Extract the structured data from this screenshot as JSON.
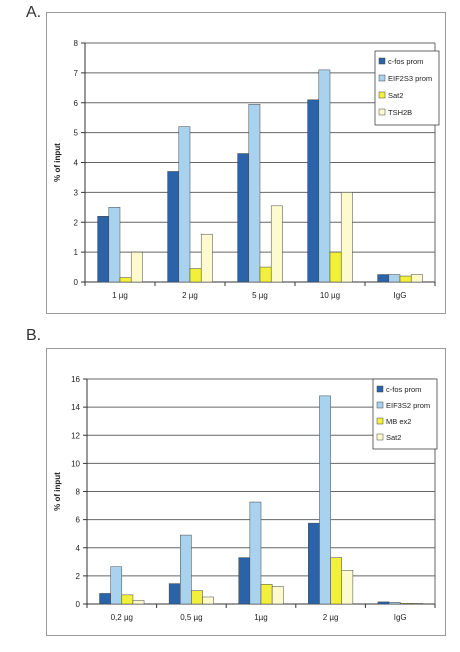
{
  "panels": [
    {
      "label": "A."
    },
    {
      "label": "B."
    }
  ],
  "chart_data": [
    {
      "type": "bar",
      "title": "",
      "xlabel": "",
      "ylabel": "% of input",
      "ylim": [
        0,
        8
      ],
      "yticks": [
        0,
        1,
        2,
        3,
        4,
        5,
        6,
        7,
        8
      ],
      "grid": true,
      "legend": "top-right",
      "categories": [
        "1 µg",
        "2 µg",
        "5 µg",
        "10 µg",
        "IgG"
      ],
      "series": [
        {
          "name": "c-fos prom",
          "color": "#2a63a8",
          "values": [
            2.2,
            3.7,
            4.3,
            6.1,
            0.25
          ]
        },
        {
          "name": "EIF2S3 prom",
          "color": "#a9d2ee",
          "values": [
            2.5,
            5.2,
            5.95,
            7.1,
            0.25
          ]
        },
        {
          "name": "Sat2",
          "color": "#f2f03a",
          "values": [
            0.15,
            0.45,
            0.5,
            1.0,
            0.2
          ]
        },
        {
          "name": "TSH2B",
          "color": "#fdfbcd",
          "values": [
            1.0,
            1.6,
            2.55,
            3.0,
            0.25
          ]
        }
      ]
    },
    {
      "type": "bar",
      "title": "",
      "xlabel": "",
      "ylabel": "% of input",
      "ylim": [
        0,
        16
      ],
      "yticks": [
        0,
        2,
        4,
        6,
        8,
        10,
        12,
        14,
        16
      ],
      "grid": true,
      "legend": "top-right",
      "categories": [
        "0,2 µg",
        "0,5 µg",
        "1µg",
        "2 µg",
        "IgG"
      ],
      "series": [
        {
          "name": "c-fos prom",
          "color": "#2a63a8",
          "values": [
            0.75,
            1.45,
            3.3,
            5.75,
            0.15
          ]
        },
        {
          "name": "EIF3S2 prom",
          "color": "#a9d2ee",
          "values": [
            2.65,
            4.9,
            7.25,
            14.8,
            0.12
          ]
        },
        {
          "name": "MB ex2",
          "color": "#f2f03a",
          "values": [
            0.65,
            0.95,
            1.4,
            3.3,
            0.05
          ]
        },
        {
          "name": "Sat2",
          "color": "#fdfbcd",
          "values": [
            0.25,
            0.5,
            1.25,
            2.4,
            0.05
          ]
        }
      ]
    }
  ]
}
